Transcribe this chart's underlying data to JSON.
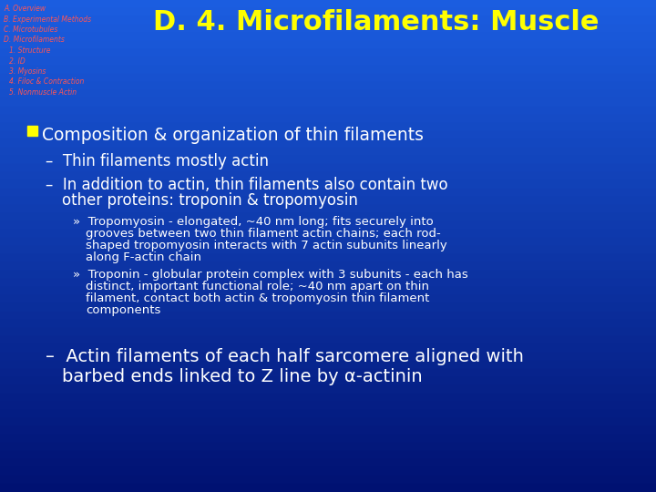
{
  "bg_color_top": "#1b5de0",
  "bg_color_bottom": "#001070",
  "title": "D. 4. Microfilaments: Muscle",
  "title_color": "#ffff00",
  "title_fontsize": 22,
  "nav_items": [
    "A. Overview",
    "B. Experimental Methods",
    "C. Microtubules",
    "D. Microfilaments",
    "1. Structure",
    "2. ID",
    "3. Myosins",
    "4. Filoc & Contraction",
    "5. Nonmuscle Actin"
  ],
  "nav_color": "#ff5555",
  "nav_fontsize": 5.5,
  "nav_indent": [
    0,
    0,
    0,
    0,
    8,
    8,
    8,
    8,
    8
  ],
  "bullet_color": "#ffff00",
  "text_color": "#ffffff",
  "bullet_fontsize": 13.5,
  "sub_fontsize": 12,
  "subsub_fontsize": 9.5,
  "bullet1": "Composition & organization of thin filaments",
  "sub1": "Thin filaments mostly actin",
  "sub2_line1": "In addition to actin, thin filaments also contain two",
  "sub2_line2": "other proteins: troponin & tropomyosin",
  "subsub1_line1": "Tropomyosin - elongated, ~40 nm long; fits securely into",
  "subsub1_line2": "grooves between two thin filament actin chains; each rod-",
  "subsub1_line3": "shaped tropomyosin interacts with 7 actin subunits linearly",
  "subsub1_line4": "along F-actin chain",
  "subsub2_line1": "Troponin - globular protein complex with 3 subunits - each has",
  "subsub2_line2": "distinct, important functional role; ~40 nm apart on thin",
  "subsub2_line3": "filament, contact both actin & tropomyosin thin filament",
  "subsub2_line4": "components",
  "sub3_line1": "Actin filaments of each half sarcomere aligned with",
  "sub3_line2": "barbed ends linked to Z line by α-actinin"
}
